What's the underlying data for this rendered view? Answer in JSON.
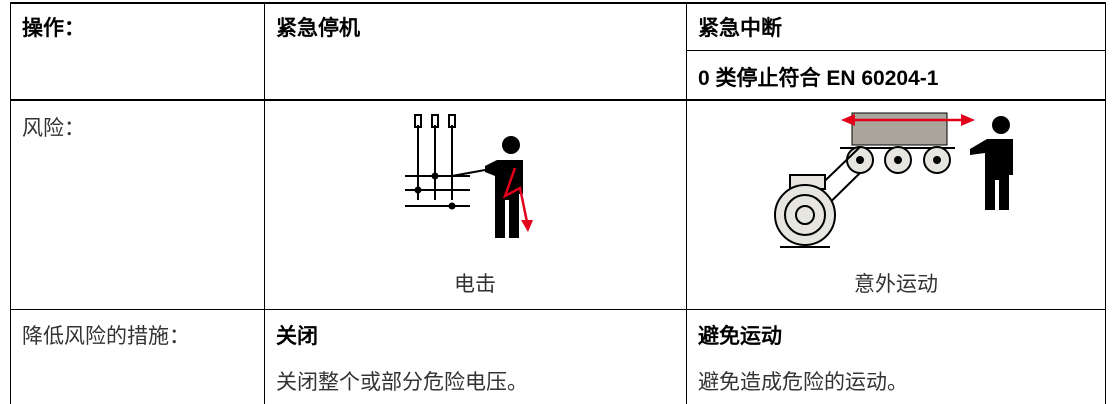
{
  "table": {
    "header": {
      "label": "操作：",
      "stop": "紧急停机",
      "interrupt": "紧急中断",
      "interrupt_note": "0 类停止符合 EN 60204-1"
    },
    "risk": {
      "label": "风险：",
      "stop": "电击",
      "interrupt": "意外运动"
    },
    "measures": {
      "label": "降低风险的措施：",
      "stop_title": "关闭",
      "stop_text": "关闭整个或部分危险电压。",
      "interrupt_title": "避免运动",
      "interrupt_text": "避免造成危险的运动。"
    }
  }
}
